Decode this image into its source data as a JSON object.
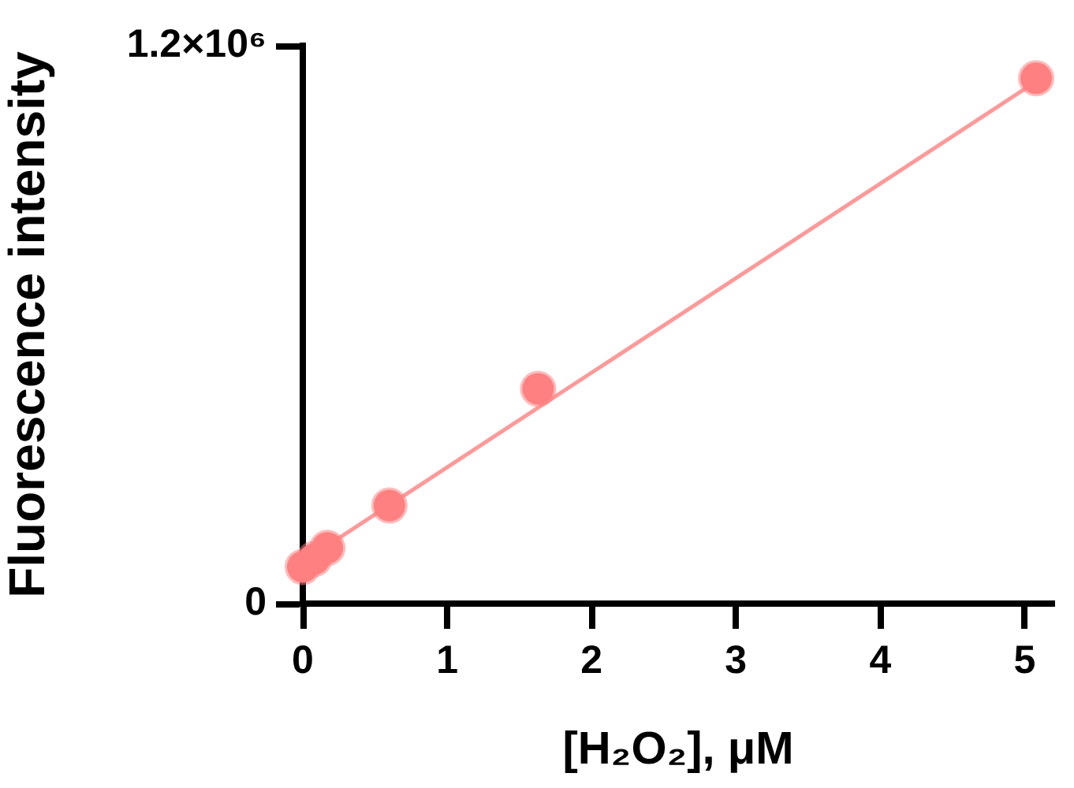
{
  "chart_data": {
    "type": "scatter",
    "xlabel": "[H₂O₂], μM",
    "ylabel": "Fluorescence intensity",
    "xlim": [
      0,
      5.2
    ],
    "xticks": [
      0,
      1,
      2,
      3,
      4,
      5
    ],
    "ylim": [
      0,
      1200000
    ],
    "yticks": [
      0,
      {
        "value": 1200000,
        "label": "1.2×10⁶"
      }
    ],
    "marker": "circle",
    "series": [
      {
        "type": "scatter",
        "color": "#ff8080",
        "x": [
          0,
          0.08,
          0.17,
          0.6,
          1.63,
          5.08
        ],
        "values": [
          79000,
          96000,
          120000,
          211000,
          462000,
          1130000
        ]
      },
      {
        "type": "line",
        "color": "#ff9999",
        "marker": "none",
        "x": [
          0,
          5.08
        ],
        "values": [
          90000,
          1123000
        ]
      }
    ]
  }
}
